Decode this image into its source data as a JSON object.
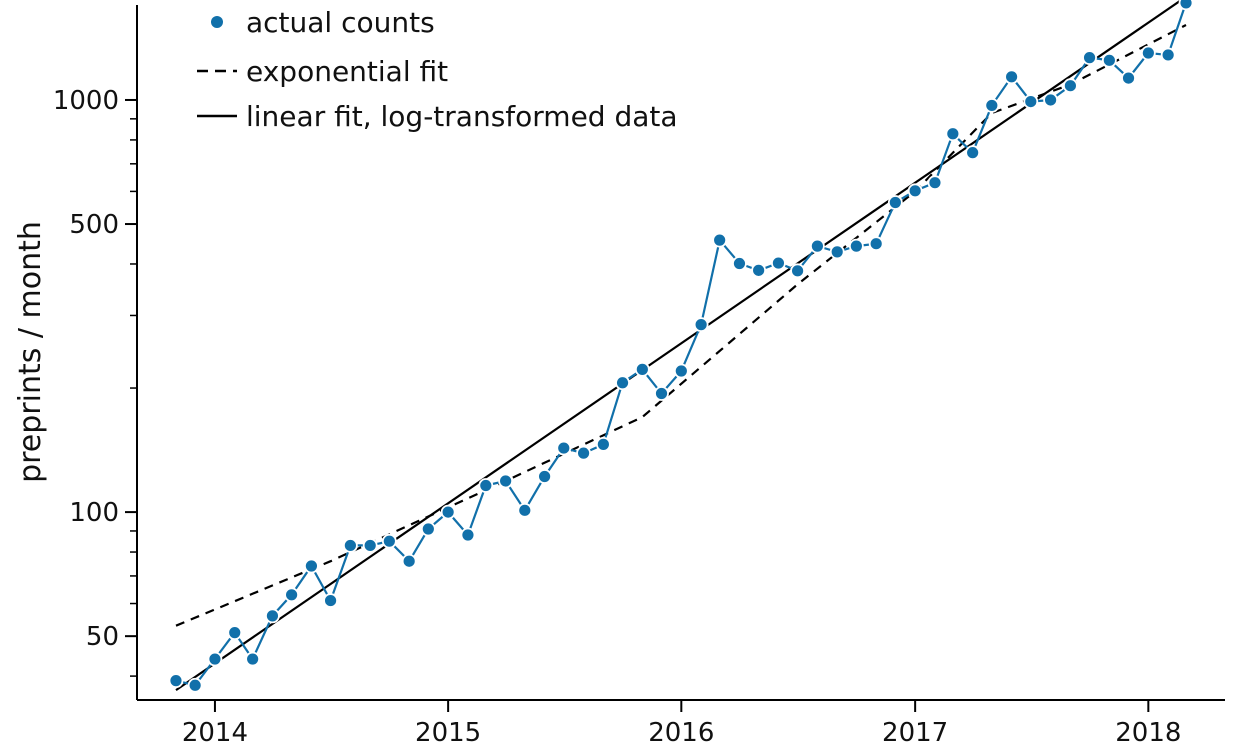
{
  "chart_data": {
    "type": "line",
    "title": "",
    "xlabel": "",
    "ylabel": "preprints / month",
    "x_scale": "date",
    "y_scale": "log",
    "xlim": [
      "2013-09-01",
      "2018-05-01"
    ],
    "ylim": [
      35,
      1700
    ],
    "x_ticks": [
      "2014-01-01",
      "2015-01-01",
      "2016-01-01",
      "2017-01-01",
      "2018-01-01"
    ],
    "x_tick_labels": [
      "2014",
      "2015",
      "2016",
      "2017",
      "2018"
    ],
    "y_major_ticks": [
      50,
      100,
      500,
      1000
    ],
    "y_major_tick_labels": [
      "50",
      "100",
      "500",
      "1000"
    ],
    "y_minor_ticks": [
      40,
      60,
      70,
      80,
      90,
      200,
      300,
      400,
      600,
      700,
      800,
      900
    ],
    "grid": false,
    "legend_position": "top-left",
    "colors": {
      "actual": "#1170aa",
      "fit": "#000000"
    },
    "legend": [
      {
        "label": "actual counts",
        "style": "points"
      },
      {
        "label": "exponential fit",
        "style": "dashed"
      },
      {
        "label": "linear fit, log-transformed data",
        "style": "solid"
      }
    ],
    "series": [
      {
        "name": "actual counts",
        "style": "points-and-line",
        "x": [
          "2013-11-01",
          "2013-12-01",
          "2014-01-01",
          "2014-02-01",
          "2014-03-01",
          "2014-04-01",
          "2014-05-01",
          "2014-06-01",
          "2014-07-01",
          "2014-08-01",
          "2014-09-01",
          "2014-10-01",
          "2014-11-01",
          "2014-12-01",
          "2015-01-01",
          "2015-02-01",
          "2015-03-01",
          "2015-04-01",
          "2015-05-01",
          "2015-06-01",
          "2015-07-01",
          "2015-08-01",
          "2015-09-01",
          "2015-10-01",
          "2015-11-01",
          "2015-12-01",
          "2016-01-01",
          "2016-02-01",
          "2016-03-01",
          "2016-04-01",
          "2016-05-01",
          "2016-06-01",
          "2016-07-01",
          "2016-08-01",
          "2016-09-01",
          "2016-10-01",
          "2016-11-01",
          "2016-12-01",
          "2017-01-01",
          "2017-02-01",
          "2017-03-01",
          "2017-04-01",
          "2017-05-01",
          "2017-06-01",
          "2017-07-01",
          "2017-08-01",
          "2017-09-01",
          "2017-10-01",
          "2017-11-01",
          "2017-12-01",
          "2018-01-01",
          "2018-02-01",
          "2018-03-01"
        ],
        "y": [
          39,
          38,
          44,
          51,
          44,
          56,
          63,
          74,
          61,
          83,
          83,
          85,
          76,
          91,
          100,
          88,
          116,
          119,
          101,
          122,
          143,
          139,
          146,
          206,
          222,
          194,
          220,
          285,
          457,
          401,
          386,
          402,
          385,
          442,
          428,
          442,
          448,
          564,
          602,
          630,
          828,
          745,
          970,
          1138,
          991,
          1000,
          1083,
          1267,
          1248,
          1130,
          1300,
          1286,
          1720
        ]
      },
      {
        "name": "exponential fit",
        "style": "dashed",
        "x": [
          "2013-11-01",
          "2014-07-01",
          "2015-03-01",
          "2015-11-01",
          "2016-07-01",
          "2017-01-01",
          "2017-05-01",
          "2017-09-01",
          "2018-03-01"
        ],
        "y": [
          53,
          76,
          113,
          170,
          357,
          600,
          930,
          1090,
          1520
        ]
      },
      {
        "name": "linear fit, log-transformed data",
        "style": "solid",
        "x": [
          "2013-11-01",
          "2018-03-01"
        ],
        "y": [
          37,
          1780
        ]
      }
    ]
  }
}
